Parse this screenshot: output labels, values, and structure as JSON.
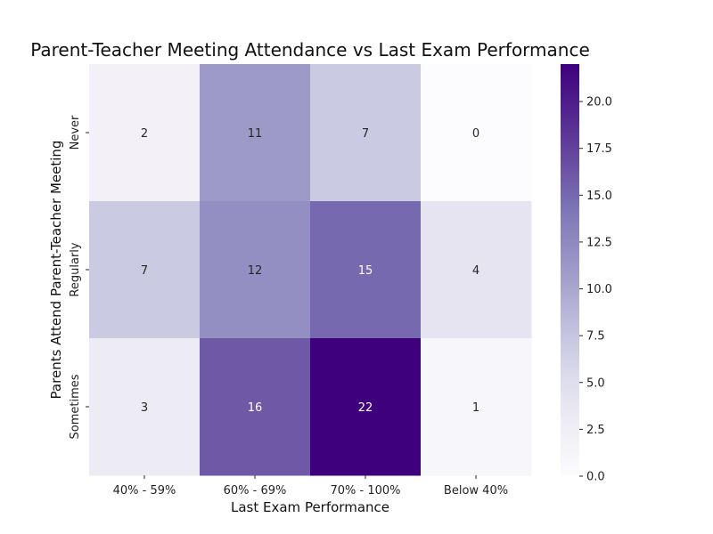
{
  "chart_data": {
    "type": "heatmap",
    "title": "Parent-Teacher Meeting Attendance vs Last Exam Performance",
    "xlabel": "Last Exam Performance",
    "ylabel": "Parents Attend Parent-Teacher Meeting",
    "x_categories": [
      "40% - 59%",
      "60% - 69%",
      "70% - 100%",
      "Below 40%"
    ],
    "y_categories": [
      "Never",
      "Regularly",
      "Sometimes"
    ],
    "values": [
      [
        2,
        11,
        7,
        0
      ],
      [
        7,
        12,
        15,
        4
      ],
      [
        3,
        16,
        22,
        1
      ]
    ],
    "colorbar": {
      "min": 0,
      "max": 22,
      "ticks": [
        "0.0",
        "2.5",
        "5.0",
        "7.5",
        "10.0",
        "12.5",
        "15.0",
        "17.5",
        "20.0"
      ],
      "colormap": "Purples"
    }
  }
}
